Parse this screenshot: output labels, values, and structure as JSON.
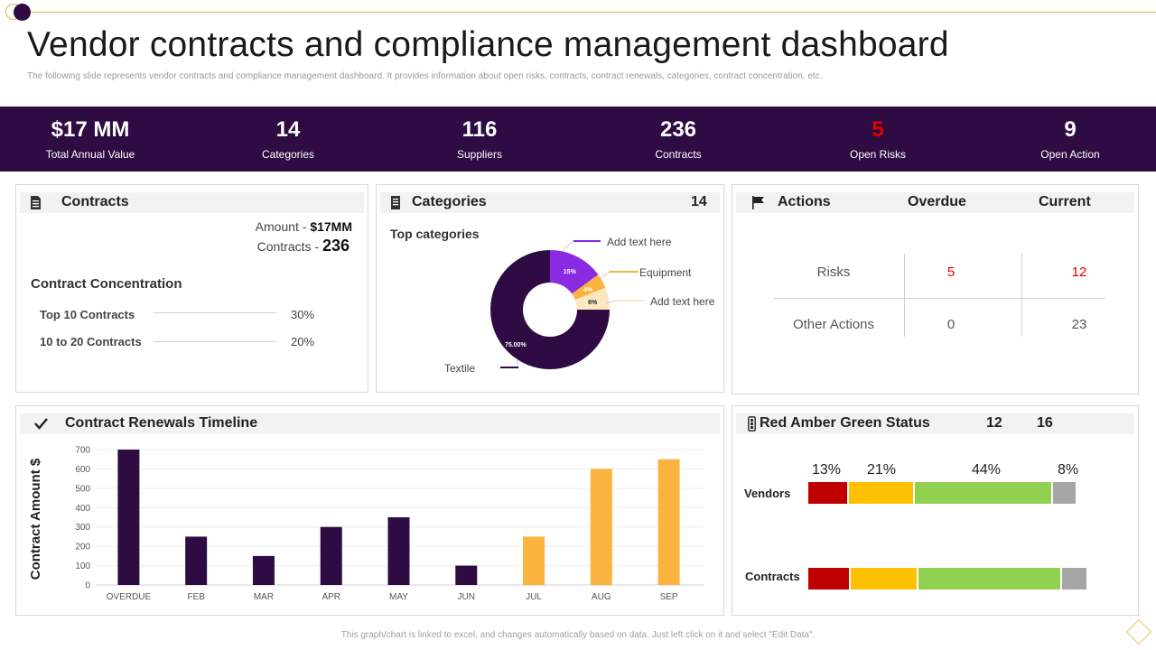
{
  "header": {
    "title": "Vendor contracts and compliance management dashboard",
    "subtitle": "The following slide represents vendor contracts and compliance management  dashboard. It provides information about open risks, contracts, contract renewals, categories, contract concentration, etc."
  },
  "kpis": [
    {
      "value": "$17 MM",
      "label": "Total Annual Value"
    },
    {
      "value": "14",
      "label": "Categories"
    },
    {
      "value": "116",
      "label": "Suppliers"
    },
    {
      "value": "236",
      "label": "Contracts"
    },
    {
      "value": "5",
      "label": "Open Risks"
    },
    {
      "value": "9",
      "label": "Open Action"
    }
  ],
  "contracts_panel": {
    "title": "Contracts",
    "amount_label": "Amount - ",
    "amount_value": "$17MM",
    "contracts_label": "Contracts - ",
    "contracts_value": "236",
    "concentration_title": "Contract Concentration",
    "rows": [
      {
        "label": "Top 10 Contracts",
        "value": "30%"
      },
      {
        "label": "10 to 20 Contracts",
        "value": "20%"
      }
    ]
  },
  "categories_panel": {
    "title": "Categories",
    "count": "14",
    "subtitle": "Top categories"
  },
  "actions_panel": {
    "title": "Actions",
    "col_overdue": "Overdue",
    "col_current": "Current",
    "rows": [
      {
        "label": "Risks",
        "overdue": "5",
        "current": "12"
      },
      {
        "label": "Other Actions",
        "overdue": "0",
        "current": "23"
      }
    ]
  },
  "renewals_panel": {
    "title": "Contract Renewals Timeline"
  },
  "rag_panel": {
    "title": "Red Amber Green Status",
    "num1": "12",
    "num2": "16",
    "vendors_label": "Vendors",
    "contracts_label": "Contracts",
    "percent_labels": [
      "13%",
      "21%",
      "44%",
      "8%"
    ]
  },
  "footer": {
    "text": "This graph/chart is linked to excel, and changes automatically based on data. Just left click on it and select \"Edit Data\"."
  },
  "colors": {
    "purple": "#2e0b42",
    "amber_bar": "#f9b33e",
    "red": "#e00000",
    "rag_red": "#c00000",
    "rag_amber": "#ffc000",
    "rag_green": "#92d050",
    "rag_grey": "#a6a6a6"
  },
  "chart_data": [
    {
      "type": "pie",
      "title": "Top categories",
      "labels": [
        "Textile",
        "Add text here",
        "Equipment",
        "Add text here"
      ],
      "values": [
        75,
        15,
        4,
        6
      ],
      "slice_labels": [
        "75.00%",
        "15%",
        "4%",
        "6%"
      ],
      "colors": [
        "#2e0b42",
        "#8a2be2",
        "#f9b33e",
        "#fde6c2"
      ]
    },
    {
      "type": "bar",
      "title": "Contract Renewals Timeline",
      "ylabel": "Contract Amount $",
      "categories": [
        "OVERDUE",
        "FEB",
        "MAR",
        "APR",
        "MAY",
        "JUN",
        "JUL",
        "AUG",
        "SEP"
      ],
      "values": [
        700,
        250,
        150,
        300,
        350,
        100,
        250,
        600,
        650
      ],
      "bar_colors": [
        "#2e0b42",
        "#2e0b42",
        "#2e0b42",
        "#2e0b42",
        "#2e0b42",
        "#2e0b42",
        "#f9b33e",
        "#f9b33e",
        "#f9b33e"
      ],
      "ylim": [
        0,
        700
      ],
      "yticks": [
        0,
        100,
        200,
        300,
        400,
        500,
        600,
        700
      ],
      "grid": true
    },
    {
      "type": "bar",
      "title": "Red Amber Green Status",
      "orientation": "horizontal-stacked",
      "categories": [
        "Vendors",
        "Contracts"
      ],
      "series": [
        {
          "name": "Red",
          "values": [
            13,
            13
          ]
        },
        {
          "name": "Amber",
          "values": [
            21,
            21
          ]
        },
        {
          "name": "Green",
          "values": [
            44,
            44
          ]
        },
        {
          "name": "Grey",
          "values": [
            8,
            8
          ]
        }
      ],
      "percent_labels": [
        "13%",
        "21%",
        "44%",
        "8%"
      ]
    }
  ]
}
